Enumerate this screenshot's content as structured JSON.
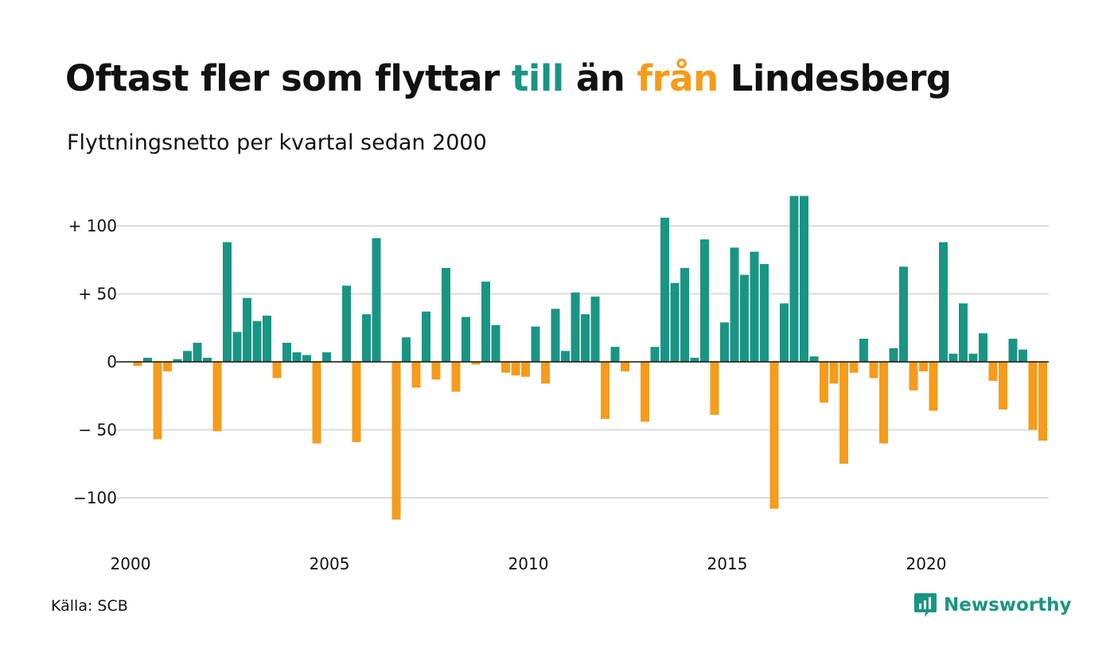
{
  "title": {
    "part1": "Oftast fler som flyttar ",
    "part2": "till",
    "part3": " än ",
    "part4": "från",
    "part5": " Lindesberg"
  },
  "subtitle": "Flyttningsnetto per kvartal sedan 2000",
  "source": "Källa: SCB",
  "logo": {
    "text": "Newsworthy",
    "icon": "newsworthy-logo-icon"
  },
  "colors": {
    "positive": "#1a9584",
    "negative": "#f59c1c",
    "grid": "#dddddd"
  },
  "chart_data": {
    "type": "bar",
    "title": "Oftast fler som flyttar till än från Lindesberg",
    "subtitle": "Flyttningsnetto per kvartal sedan 2000",
    "xlabel": "",
    "ylabel": "",
    "ylim": [
      -118,
      122
    ],
    "y_ticks": [
      {
        "value": 100,
        "label": "+ 100"
      },
      {
        "value": 50,
        "label": "+  50"
      },
      {
        "value": 0,
        "label": "0"
      },
      {
        "value": -50,
        "label": "− 50"
      },
      {
        "value": -100,
        "label": "−100"
      }
    ],
    "x_ticks": [
      {
        "year": 2000,
        "label": "2000"
      },
      {
        "year": 2005,
        "label": "2005"
      },
      {
        "year": 2010,
        "label": "2010"
      },
      {
        "year": 2015,
        "label": "2015"
      },
      {
        "year": 2020,
        "label": "2020"
      }
    ],
    "start_year": 2000,
    "start_quarter": 1,
    "grid": true,
    "legend": "none",
    "values": [
      -3,
      3,
      -57,
      -7,
      2,
      8,
      14,
      3,
      -51,
      88,
      22,
      47,
      30,
      34,
      -12,
      14,
      7,
      5,
      -60,
      7,
      0,
      56,
      -59,
      35,
      91,
      0,
      -116,
      18,
      -19,
      37,
      -13,
      69,
      -22,
      33,
      -2,
      59,
      27,
      -8,
      -10,
      -11,
      26,
      -16,
      39,
      8,
      51,
      35,
      48,
      -42,
      11,
      -7,
      0,
      -44,
      11,
      106,
      58,
      69,
      3,
      90,
      -39,
      29,
      84,
      64,
      81,
      72,
      -108,
      43,
      122,
      122,
      4,
      -30,
      -16,
      -75,
      -8,
      17,
      -12,
      -60,
      10,
      70,
      -21,
      -7,
      -36,
      88,
      6,
      43,
      6,
      21,
      -14,
      -35,
      17,
      9,
      -50,
      -58
    ]
  }
}
